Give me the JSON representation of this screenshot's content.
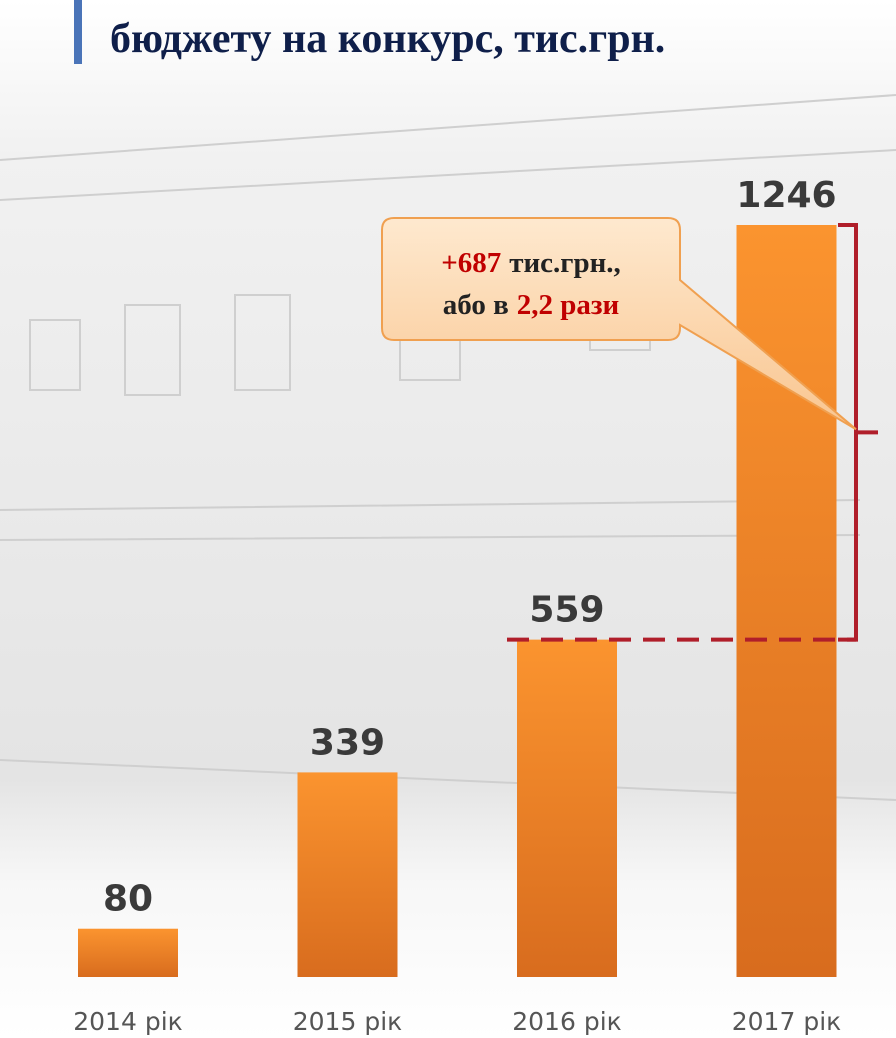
{
  "chart_data": {
    "type": "bar",
    "title": "бюджету на конкурс, тис.грн.",
    "categories": [
      "2014 рік",
      "2015 рік",
      "2016 рік",
      "2017 рік"
    ],
    "values": [
      80,
      339,
      559,
      1246
    ],
    "color": "#f28a2a",
    "annotation": {
      "parts": [
        "+687",
        "тис.грн.,",
        "або в",
        "2,2 рази"
      ],
      "highlight_color": "#c00000",
      "bracket_color": "#b01e2a"
    }
  }
}
